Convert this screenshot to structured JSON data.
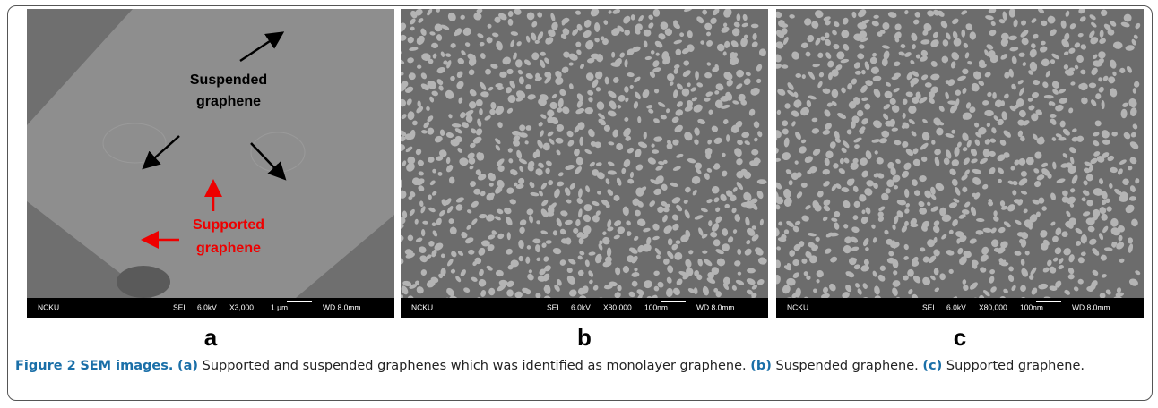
{
  "panels": [
    {
      "label": "a",
      "suspended_label": [
        "Suspended",
        "graphene"
      ],
      "supported_label": [
        "Supported",
        "graphene"
      ],
      "info_bar": [
        "NCKU",
        "SEI",
        "6.0kV",
        "X3,000",
        "1 μm",
        "WD 8.0mm"
      ]
    },
    {
      "label": "b",
      "info_bar": [
        "NCKU",
        "SEI",
        "6.0kV",
        "X80,000",
        "100nm",
        "WD 8.0mm"
      ]
    },
    {
      "label": "c",
      "info_bar": [
        "NCKU",
        "SEI",
        "6.0kV",
        "X80,000",
        "100nm",
        "WD 8.0mm"
      ]
    }
  ],
  "caption": {
    "figure_label": "Figure 2",
    "title": "SEM images.",
    "parts": [
      {
        "tag": "(a)",
        "text": "Supported and suspended graphenes which was identified as monolayer graphene."
      },
      {
        "tag": "(b)",
        "text": "Suspended graphene."
      },
      {
        "tag": "(c)",
        "text": "Supported graphene."
      }
    ]
  }
}
